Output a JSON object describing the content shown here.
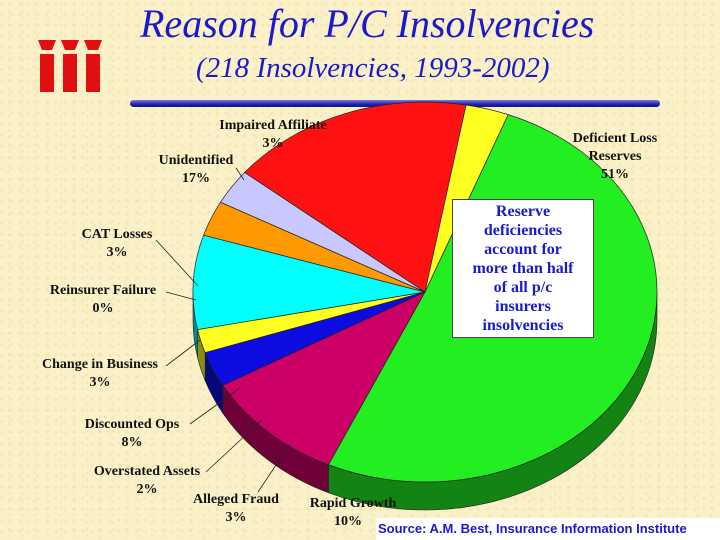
{
  "header": {
    "title": "Reason for P/C Insolvencies",
    "subtitle": "(218 Insolvencies, 1993-2002)"
  },
  "logo": {
    "name": "iii-logo",
    "color": "#e01010"
  },
  "callout": {
    "lines": [
      "Reserve",
      "deficiencies",
      "account for",
      "more than half",
      "of all p/c",
      "insurers",
      "insolvencies"
    ]
  },
  "source": "Source:  A.M. Best, Insurance Information Institute",
  "chart_data": {
    "type": "pie",
    "style": "3d",
    "categories": [
      "Deficient Loss Reserves",
      "Rapid Growth",
      "Alleged Fraud",
      "Overstated Assets",
      "Discounted Ops",
      "Change in Business",
      "Reinsurer Failure",
      "CAT Losses",
      "Unidentified",
      "Impaired Affiliate"
    ],
    "values": [
      51,
      10,
      3,
      2,
      8,
      3,
      0,
      3,
      17,
      3
    ],
    "value_labels": [
      "51%",
      "10%",
      "3%",
      "2%",
      "8%",
      "3%",
      "0%",
      "3%",
      "17%",
      "3%"
    ],
    "colors": [
      "#22ee22",
      "#cc0066",
      "#0c0ce0",
      "#ffff22",
      "#00ffff",
      "#ff9900",
      "#ff9900",
      "#c8c8ff",
      "#ff1111",
      "#ffff22"
    ],
    "legend": "none"
  }
}
